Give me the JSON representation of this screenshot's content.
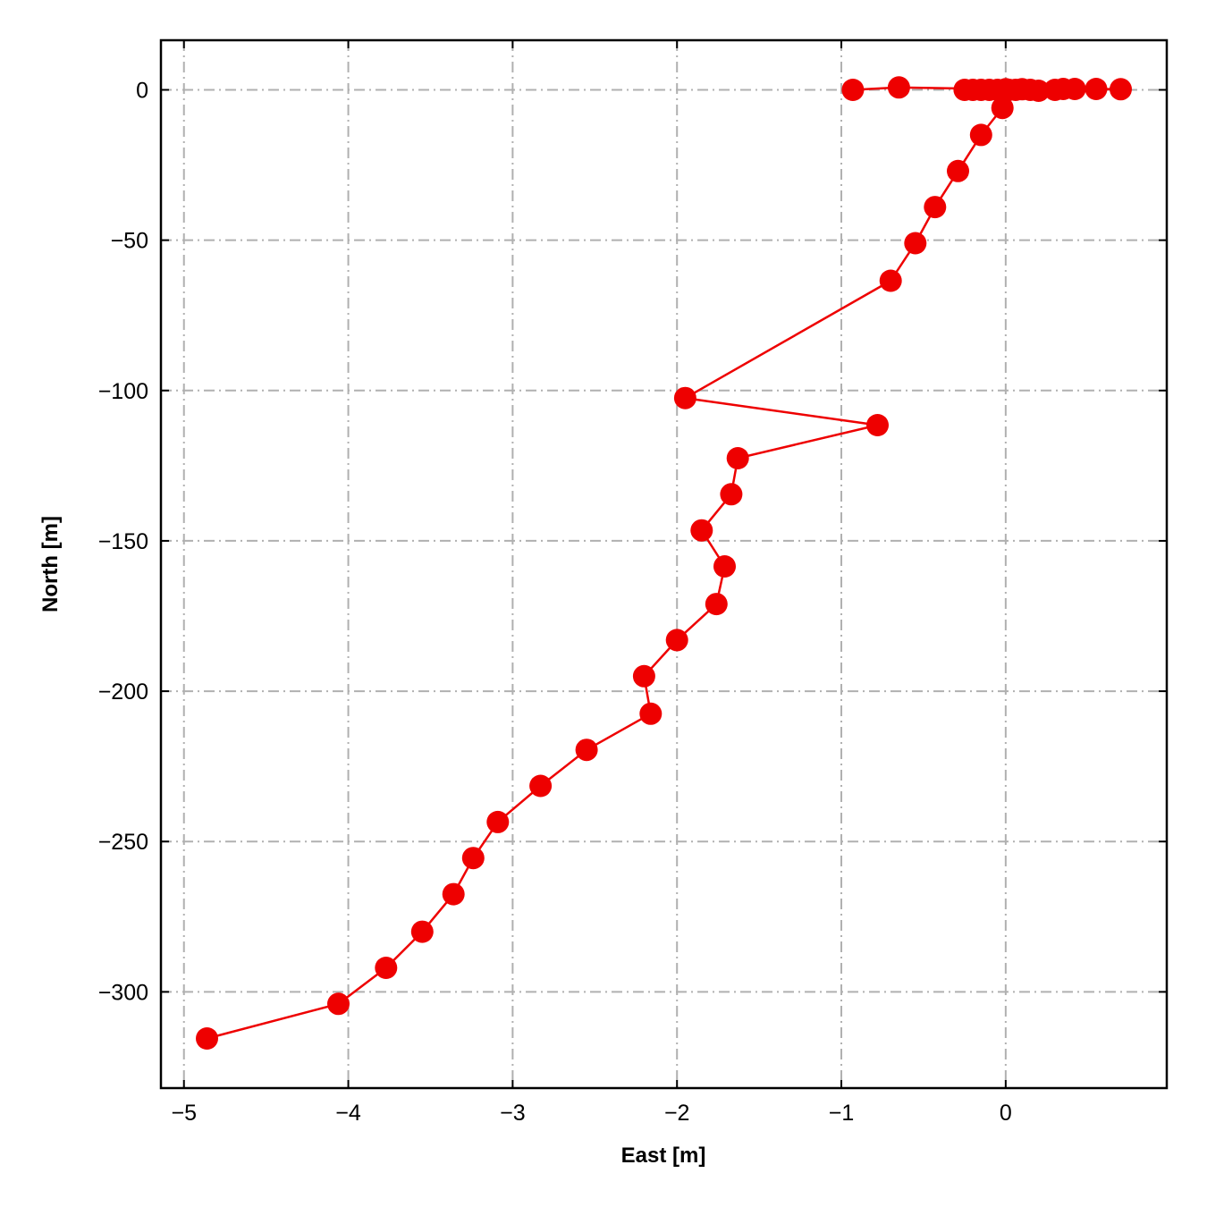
{
  "chart_data": {
    "type": "line",
    "title": "",
    "xlabel": "East [m]",
    "ylabel": "North [m]",
    "xlim": [
      -5.14,
      0.98
    ],
    "ylim": [
      -332,
      16.5
    ],
    "xticks": [
      -5,
      -4,
      -3,
      -2,
      -1,
      0
    ],
    "xtick_labels": [
      "−5",
      "−4",
      "−3",
      "−2",
      "−1",
      "0"
    ],
    "yticks": [
      0,
      -50,
      -100,
      -150,
      -200,
      -250,
      -300
    ],
    "ytick_labels": [
      "0",
      "−50",
      "−100",
      "−150",
      "−200",
      "−250",
      "−300"
    ],
    "grid": true,
    "legend": "none",
    "series": [
      {
        "color": "#ee0000",
        "marker": "circle",
        "points": [
          [
            -0.93,
            0.0
          ],
          [
            -0.65,
            0.8
          ],
          [
            0.0,
            0.2
          ],
          [
            -0.25,
            0.0
          ],
          [
            -0.2,
            0.0
          ],
          [
            -0.15,
            0.0
          ],
          [
            -0.1,
            0.0
          ],
          [
            -0.05,
            0.0
          ],
          [
            0.02,
            0.0
          ],
          [
            0.06,
            0.0
          ],
          [
            0.1,
            0.2
          ],
          [
            0.15,
            0.0
          ],
          [
            0.2,
            -0.3
          ],
          [
            0.3,
            0.0
          ],
          [
            0.35,
            0.3
          ],
          [
            0.42,
            0.3
          ],
          [
            0.55,
            0.3
          ],
          [
            0.7,
            0.2
          ],
          [
            0.0,
            0.0
          ],
          [
            -0.02,
            -6.0
          ],
          [
            -0.15,
            -15.0
          ],
          [
            -0.29,
            -27.0
          ],
          [
            -0.43,
            -39.0
          ],
          [
            -0.55,
            -51.0
          ],
          [
            -0.7,
            -63.5
          ],
          [
            -1.95,
            -102.5
          ],
          [
            -0.78,
            -111.5
          ],
          [
            -1.63,
            -122.5
          ],
          [
            -1.67,
            -134.5
          ],
          [
            -1.85,
            -146.5
          ],
          [
            -1.71,
            -158.5
          ],
          [
            -1.76,
            -171.0
          ],
          [
            -2.0,
            -183.0
          ],
          [
            -2.2,
            -195.0
          ],
          [
            -2.16,
            -207.5
          ],
          [
            -2.55,
            -219.5
          ],
          [
            -2.83,
            -231.5
          ],
          [
            -3.09,
            -243.5
          ],
          [
            -3.24,
            -255.5
          ],
          [
            -3.36,
            -267.5
          ],
          [
            -3.55,
            -280.0
          ],
          [
            -3.77,
            -292.0
          ],
          [
            -4.06,
            -304.0
          ],
          [
            -4.86,
            -315.5
          ]
        ]
      }
    ]
  }
}
